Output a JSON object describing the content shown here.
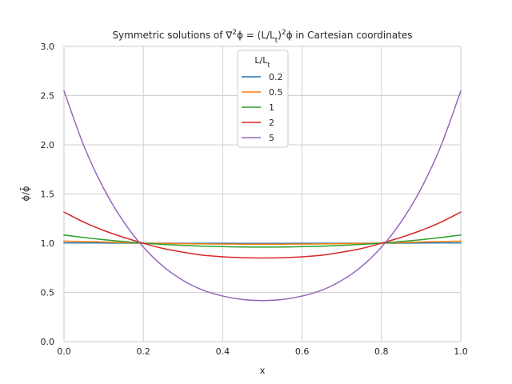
{
  "chart_data": {
    "type": "line",
    "title": "Symmetric solutions of ∇²ϕ = (L/L_t)²ϕ in Cartesian coordinates",
    "xlabel": "x",
    "ylabel": "ϕ/ϕ̄",
    "xlim": [
      0.0,
      1.0
    ],
    "ylim": [
      0.0,
      3.0
    ],
    "x_ticks": [
      "0.0",
      "0.2",
      "0.4",
      "0.6",
      "0.8",
      "1.0"
    ],
    "y_ticks": [
      "0.0",
      "0.5",
      "1.0",
      "1.5",
      "2.0",
      "2.5",
      "3.0"
    ],
    "grid": true,
    "legend": {
      "title": "L/L_t",
      "placement": "upper-center"
    },
    "x": [
      0.0,
      0.05,
      0.1,
      0.15,
      0.2,
      0.25,
      0.3,
      0.35,
      0.4,
      0.45,
      0.5,
      0.55,
      0.6,
      0.65,
      0.7,
      0.75,
      0.8,
      0.85,
      0.9,
      0.95,
      1.0
    ],
    "series": [
      {
        "name": "0.2",
        "color": "#1f77b4",
        "values": [
          1.003,
          1.003,
          1.002,
          1.001,
          1.0,
          1.0,
          0.999,
          0.999,
          0.999,
          0.998,
          0.998,
          0.998,
          0.999,
          0.999,
          0.999,
          1.0,
          1.0,
          1.001,
          1.002,
          1.003,
          1.003
        ]
      },
      {
        "name": "0.5",
        "color": "#ff7f0e",
        "values": [
          1.021,
          1.017,
          1.012,
          1.006,
          1.0,
          0.998,
          0.995,
          0.993,
          0.991,
          0.99,
          0.99,
          0.99,
          0.991,
          0.993,
          0.995,
          0.998,
          1.0,
          1.006,
          1.012,
          1.017,
          1.021
        ]
      },
      {
        "name": "1",
        "color": "#2ca02c",
        "values": [
          1.083,
          1.058,
          1.036,
          1.017,
          1.0,
          0.988,
          0.978,
          0.97,
          0.965,
          0.961,
          0.96,
          0.961,
          0.965,
          0.97,
          0.978,
          0.988,
          1.0,
          1.017,
          1.036,
          1.058,
          1.083
        ]
      },
      {
        "name": "2",
        "color": "#d62728",
        "values": [
          1.316,
          1.214,
          1.13,
          1.06,
          1.0,
          0.946,
          0.909,
          0.878,
          0.862,
          0.853,
          0.85,
          0.853,
          0.862,
          0.878,
          0.909,
          0.946,
          1.0,
          1.06,
          1.13,
          1.214,
          1.316
        ]
      },
      {
        "name": "5",
        "color": "#9467bd",
        "values": [
          2.548,
          1.99,
          1.556,
          1.22,
          0.96,
          0.764,
          0.622,
          0.523,
          0.463,
          0.428,
          0.417,
          0.428,
          0.463,
          0.523,
          0.622,
          0.764,
          0.96,
          1.22,
          1.556,
          1.99,
          2.548
        ]
      }
    ]
  }
}
